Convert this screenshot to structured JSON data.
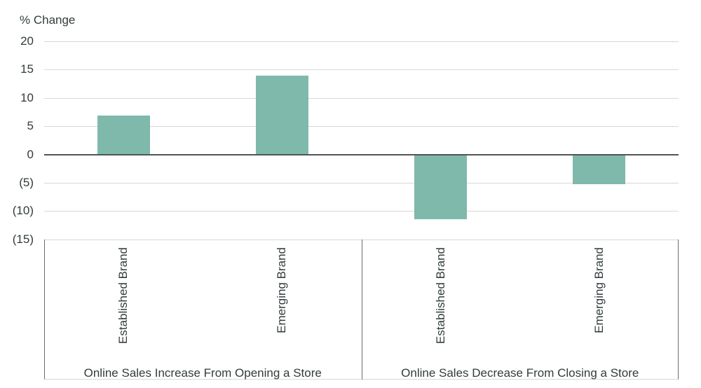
{
  "chart_data": {
    "type": "bar",
    "title": "",
    "ylabel": "% Change",
    "ylim": [
      -15,
      20
    ],
    "yticks": [
      20,
      15,
      10,
      5,
      0,
      -5,
      -10,
      -15
    ],
    "ytick_labels": [
      "20",
      "15",
      "10",
      "5",
      "0",
      "(5)",
      "(10)",
      "(15)"
    ],
    "grid": "horizontal",
    "legend": "none",
    "bar_color": "#7EB9AB",
    "groups": [
      {
        "label": "Online Sales Increase From Opening a Store",
        "categories": [
          "Established Brand",
          "Emerging Brand"
        ],
        "values": [
          6.9,
          13.9
        ]
      },
      {
        "label": "Online Sales Decrease From Closing a Store",
        "categories": [
          "Established Brand",
          "Emerging Brand"
        ],
        "values": [
          -11.5,
          -5.2
        ]
      }
    ]
  },
  "colors": {
    "bar": "#7EB9AB",
    "gridline": "#D8D8D8",
    "zero_line": "#4F5557",
    "box_border": "#686E70",
    "text": "#333B3D",
    "background": "#FFFFFF"
  }
}
